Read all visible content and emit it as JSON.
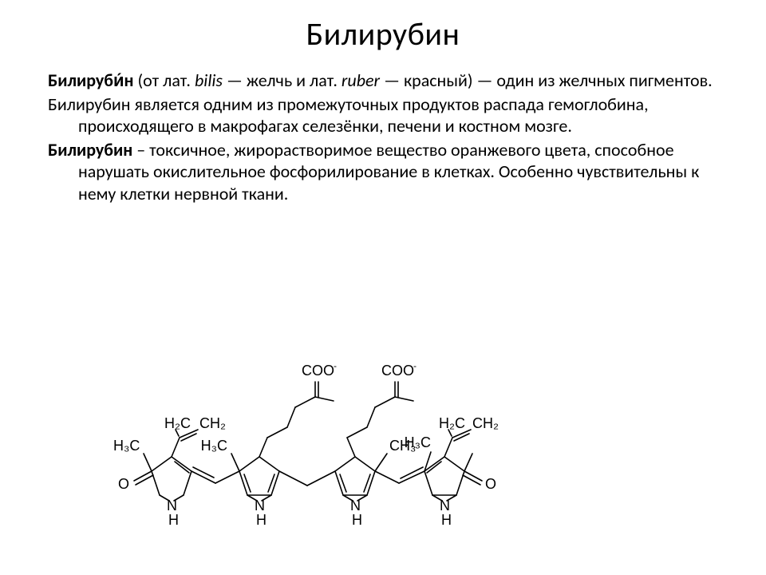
{
  "title": "Билирубин",
  "paragraphs": [
    {
      "runs": [
        {
          "text": "Билируби́н",
          "bold": true
        },
        {
          "text": " (от лат. "
        },
        {
          "text": "bilis",
          "italic": true
        },
        {
          "text": " — желчь и лат. "
        },
        {
          "text": "ruber",
          "italic": true
        },
        {
          "text": " — красный) — один из желчных пигментов."
        }
      ]
    },
    {
      "runs": [
        {
          "text": "Билирубин является одним из промежуточных продуктов распада гемоглобина, происходящего в  макрофагах селезёнки, печени и костном мозге."
        }
      ]
    },
    {
      "runs": [
        {
          "text": "Билирубин",
          "bold": true
        },
        {
          "text": " – токсичное, жирорастворимое вещество оранжевого цвета, способное нарушать окислительное фосфорилирование в клетках. Особенно чувствительны к нему клетки нервной ткани."
        }
      ]
    }
  ],
  "chem": {
    "labels": {
      "COO": "COO",
      "minus": "-",
      "H2C": "H₂C",
      "CH2": "CH₂",
      "H3C": "H₃C",
      "CH3": "CH₃",
      "O": "O",
      "N": "N",
      "H": "H"
    },
    "colors": {
      "line": "#000000",
      "text": "#000000",
      "bg": "#ffffff"
    },
    "line_width": 1.6,
    "font_family": "Arial",
    "font_size_label": 18,
    "font_size_sub": 12
  }
}
